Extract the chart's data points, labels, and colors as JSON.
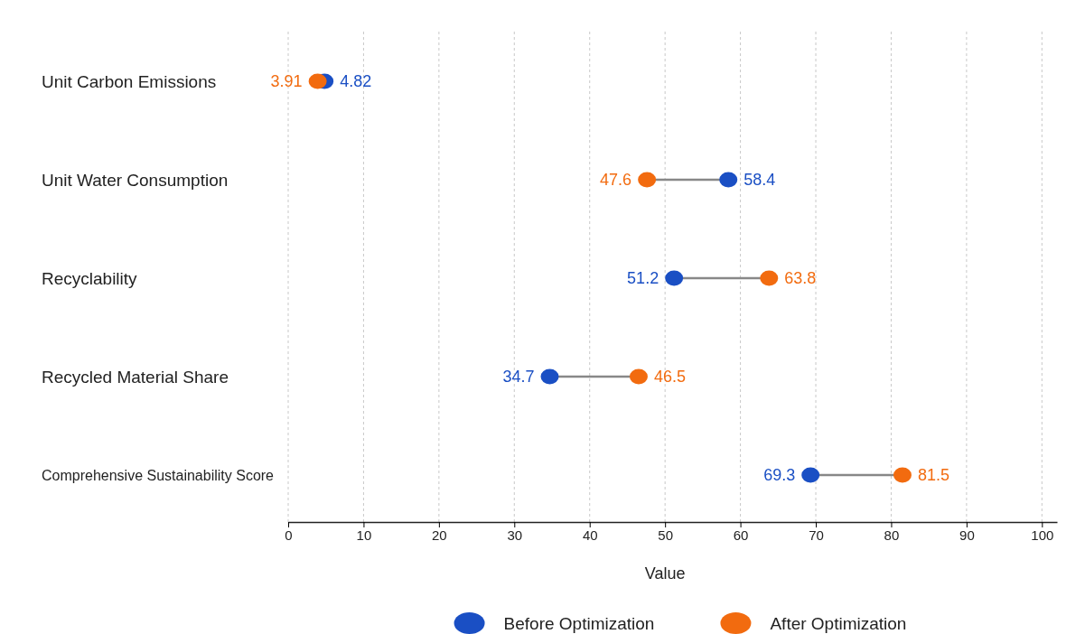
{
  "chart_data": {
    "type": "scatter",
    "orientation": "horizontal",
    "xlabel": "Value",
    "categories": [
      "Unit Carbon Emissions",
      "Unit Water Consumption",
      "Recyclability",
      "Recycled Material Share",
      "Comprehensive Sustainability Score"
    ],
    "series": [
      {
        "name": "Before Optimization",
        "color": "#1a4fc4",
        "values": [
          4.82,
          58.4,
          51.2,
          34.7,
          69.3
        ]
      },
      {
        "name": "After Optimization",
        "color": "#f26b0f",
        "values": [
          3.91,
          47.6,
          63.8,
          46.5,
          81.5
        ]
      }
    ],
    "xlim": [
      0,
      102
    ],
    "xticks": [
      0,
      10,
      20,
      30,
      40,
      50,
      60,
      70,
      80,
      90,
      100
    ],
    "grid": "x",
    "data_labels": true,
    "legend": "bottom",
    "marker": "circle"
  }
}
